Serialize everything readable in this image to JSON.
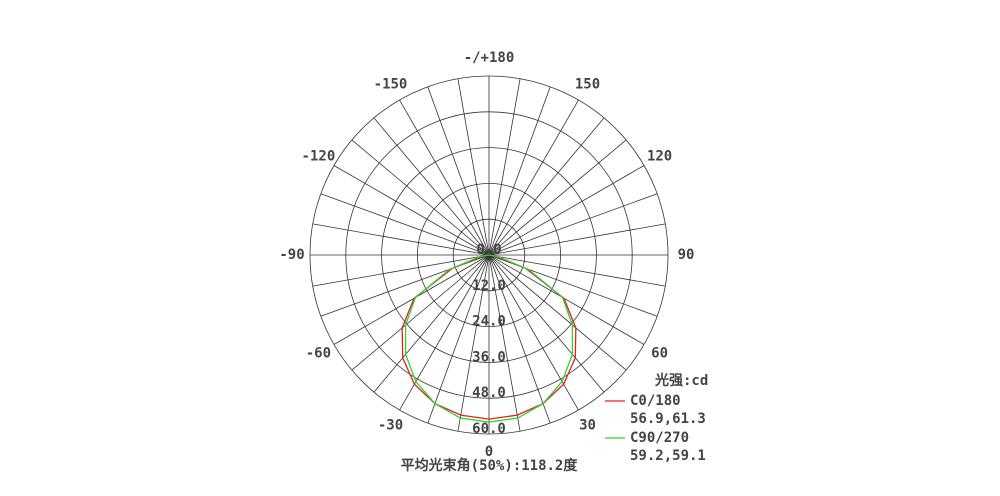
{
  "chart_data": {
    "type": "polar",
    "theta": [
      -90,
      -80,
      -70,
      -60,
      -50,
      -40,
      -30,
      -20,
      -10,
      0,
      10,
      20,
      30,
      40,
      50,
      60,
      70,
      80,
      90
    ],
    "series": [
      {
        "name": "C0/180",
        "color": "#e02020",
        "label": "56.9,61.3",
        "values": [
          0,
          2,
          13,
          29,
          38,
          45,
          50,
          53,
          54.5,
          55,
          54.5,
          53,
          50,
          45,
          38,
          29,
          13,
          2,
          0
        ]
      },
      {
        "name": "C90/270",
        "color": "#30d030",
        "label": "59.2,59.1",
        "values": [
          0,
          3,
          14,
          28.5,
          36.5,
          43.5,
          49,
          53,
          55.5,
          56,
          55.5,
          53,
          49,
          43.5,
          36.5,
          28.5,
          14,
          3,
          0
        ]
      }
    ],
    "rlim": [
      0,
      60
    ],
    "rticks": [
      {
        "value": 0,
        "label": "0.0"
      },
      {
        "value": 12,
        "label": "12.0"
      },
      {
        "value": 24,
        "label": "24.0"
      },
      {
        "value": 36,
        "label": "36.0"
      },
      {
        "value": 48,
        "label": "48.0"
      },
      {
        "value": 60,
        "label": "60.0"
      }
    ],
    "thetaticks": [
      {
        "value": 180,
        "label": "-/+180"
      },
      150,
      120,
      90,
      60,
      30,
      0,
      -30,
      -60,
      -90,
      -120,
      -150
    ],
    "thetagrid": 10,
    "legend_title": "光强:cd",
    "footer": "平均光束角(50%):118.2度"
  }
}
